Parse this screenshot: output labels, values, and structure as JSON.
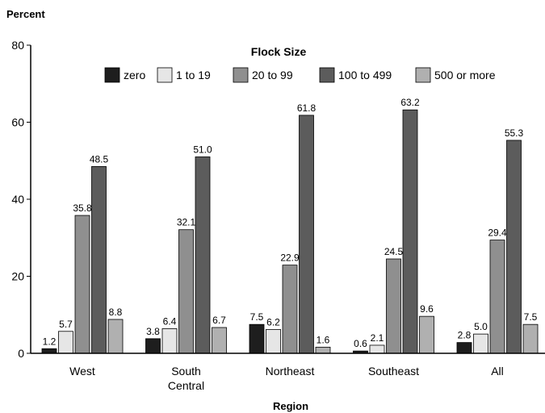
{
  "chart_data": {
    "type": "bar",
    "ylabel": "Percent",
    "xlabel": "Region",
    "legend_title": "Flock Size",
    "legend_position": "top",
    "ylim": [
      0,
      80
    ],
    "yticks": [
      0,
      20,
      40,
      60,
      80
    ],
    "grid": false,
    "categories": [
      [
        "West"
      ],
      [
        "South",
        "Central"
      ],
      [
        "Northeast"
      ],
      [
        "Southeast"
      ],
      [
        "All"
      ]
    ],
    "series": [
      {
        "name": "zero",
        "color": "#1e1e1e",
        "values": [
          1.2,
          3.8,
          7.5,
          0.6,
          2.8
        ],
        "labels": [
          "1.2",
          "3.8",
          "7.5",
          "0.6",
          "2.8"
        ]
      },
      {
        "name": "1 to 19",
        "color": "#e6e6e6",
        "values": [
          5.7,
          6.4,
          6.2,
          2.1,
          5.0
        ],
        "labels": [
          "5.7",
          "6.4",
          "6.2",
          "2.1",
          "5.0"
        ]
      },
      {
        "name": "20 to 99",
        "color": "#8f8f8f",
        "values": [
          35.8,
          32.1,
          22.9,
          24.5,
          29.4
        ],
        "labels": [
          "35.8",
          "32.1",
          "22.9",
          "24.5",
          "29.4"
        ]
      },
      {
        "name": "100 to 499",
        "color": "#5c5c5c",
        "values": [
          48.5,
          51.0,
          61.8,
          63.2,
          55.3
        ],
        "labels": [
          "48.5",
          "51.0",
          "61.8",
          "63.2",
          "55.3"
        ]
      },
      {
        "name": "500 or more",
        "color": "#b0b0b0",
        "values": [
          8.8,
          6.7,
          1.6,
          9.6,
          7.5
        ],
        "labels": [
          "8.8",
          "6.7",
          "1.6",
          "9.6",
          "7.5"
        ]
      }
    ]
  }
}
